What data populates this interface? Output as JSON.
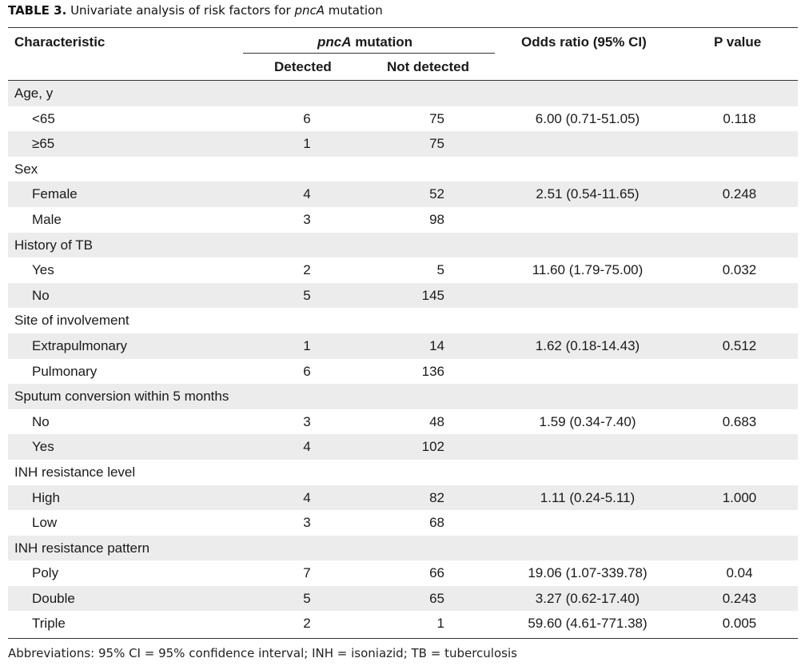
{
  "caption": {
    "lead": "TABLE 3.",
    "text": "Univariate analysis of risk factors for",
    "gene": "pncA",
    "tail": "mutation"
  },
  "headers": {
    "characteristic": "Characteristic",
    "group_gene": "pncA",
    "group_tail": "mutation",
    "detected": "Detected",
    "not_detected": "Not detected",
    "odds_ratio": "Odds ratio (95% CI)",
    "p_value": "P value"
  },
  "rows": [
    {
      "label": "Age, y",
      "det": "",
      "nd": "",
      "or": "",
      "p": "",
      "sub": false
    },
    {
      "label": "<65",
      "det": "6",
      "nd": "75",
      "or": "6.00 (0.71-51.05)",
      "p": "0.118",
      "sub": true
    },
    {
      "label": "≥65",
      "det": "1",
      "nd": "75",
      "or": "",
      "p": "",
      "sub": true
    },
    {
      "label": "Sex",
      "det": "",
      "nd": "",
      "or": "",
      "p": "",
      "sub": false
    },
    {
      "label": "Female",
      "det": "4",
      "nd": "52",
      "or": "2.51 (0.54-11.65)",
      "p": "0.248",
      "sub": true
    },
    {
      "label": "Male",
      "det": "3",
      "nd": "98",
      "or": "",
      "p": "",
      "sub": true
    },
    {
      "label": "History of TB",
      "det": "",
      "nd": "",
      "or": "",
      "p": "",
      "sub": false
    },
    {
      "label": "Yes",
      "det": "2",
      "nd": "5",
      "or": "11.60 (1.79-75.00)",
      "p": "0.032",
      "sub": true
    },
    {
      "label": "No",
      "det": "5",
      "nd": "145",
      "or": "",
      "p": "",
      "sub": true
    },
    {
      "label": "Site of involvement",
      "det": "",
      "nd": "",
      "or": "",
      "p": "",
      "sub": false
    },
    {
      "label": "Extrapulmonary",
      "det": "1",
      "nd": "14",
      "or": "1.62 (0.18-14.43)",
      "p": "0.512",
      "sub": true
    },
    {
      "label": "Pulmonary",
      "det": "6",
      "nd": "136",
      "or": "",
      "p": "",
      "sub": true
    },
    {
      "label": "Sputum conversion within 5 months",
      "det": "",
      "nd": "",
      "or": "",
      "p": "",
      "sub": false
    },
    {
      "label": "No",
      "det": "3",
      "nd": "48",
      "or": "1.59 (0.34-7.40)",
      "p": "0.683",
      "sub": true
    },
    {
      "label": "Yes",
      "det": "4",
      "nd": "102",
      "or": "",
      "p": "",
      "sub": true
    },
    {
      "label": "INH resistance level",
      "det": "",
      "nd": "",
      "or": "",
      "p": "",
      "sub": false
    },
    {
      "label": "High",
      "det": "4",
      "nd": "82",
      "or": "1.11 (0.24-5.11)",
      "p": "1.000",
      "sub": true
    },
    {
      "label": "Low",
      "det": "3",
      "nd": "68",
      "or": "",
      "p": "",
      "sub": true
    },
    {
      "label": "INH resistance pattern",
      "det": "",
      "nd": "",
      "or": "",
      "p": "",
      "sub": false
    },
    {
      "label": "Poly",
      "det": "7",
      "nd": "66",
      "or": "19.06 (1.07-339.78)",
      "p": "0.04",
      "sub": true
    },
    {
      "label": "Double",
      "det": "5",
      "nd": "65",
      "or": "3.27 (0.62-17.40)",
      "p": "0.243",
      "sub": true
    },
    {
      "label": "Triple",
      "det": "2",
      "nd": "1",
      "or": "59.60 (4.61-771.38)",
      "p": "0.005",
      "sub": true
    }
  ],
  "footnote": "Abbreviations: 95% CI = 95% confidence interval; INH = isoniazid; TB = tuberculosis",
  "colors": {
    "shade": "#ececed",
    "rule": "#333333"
  }
}
